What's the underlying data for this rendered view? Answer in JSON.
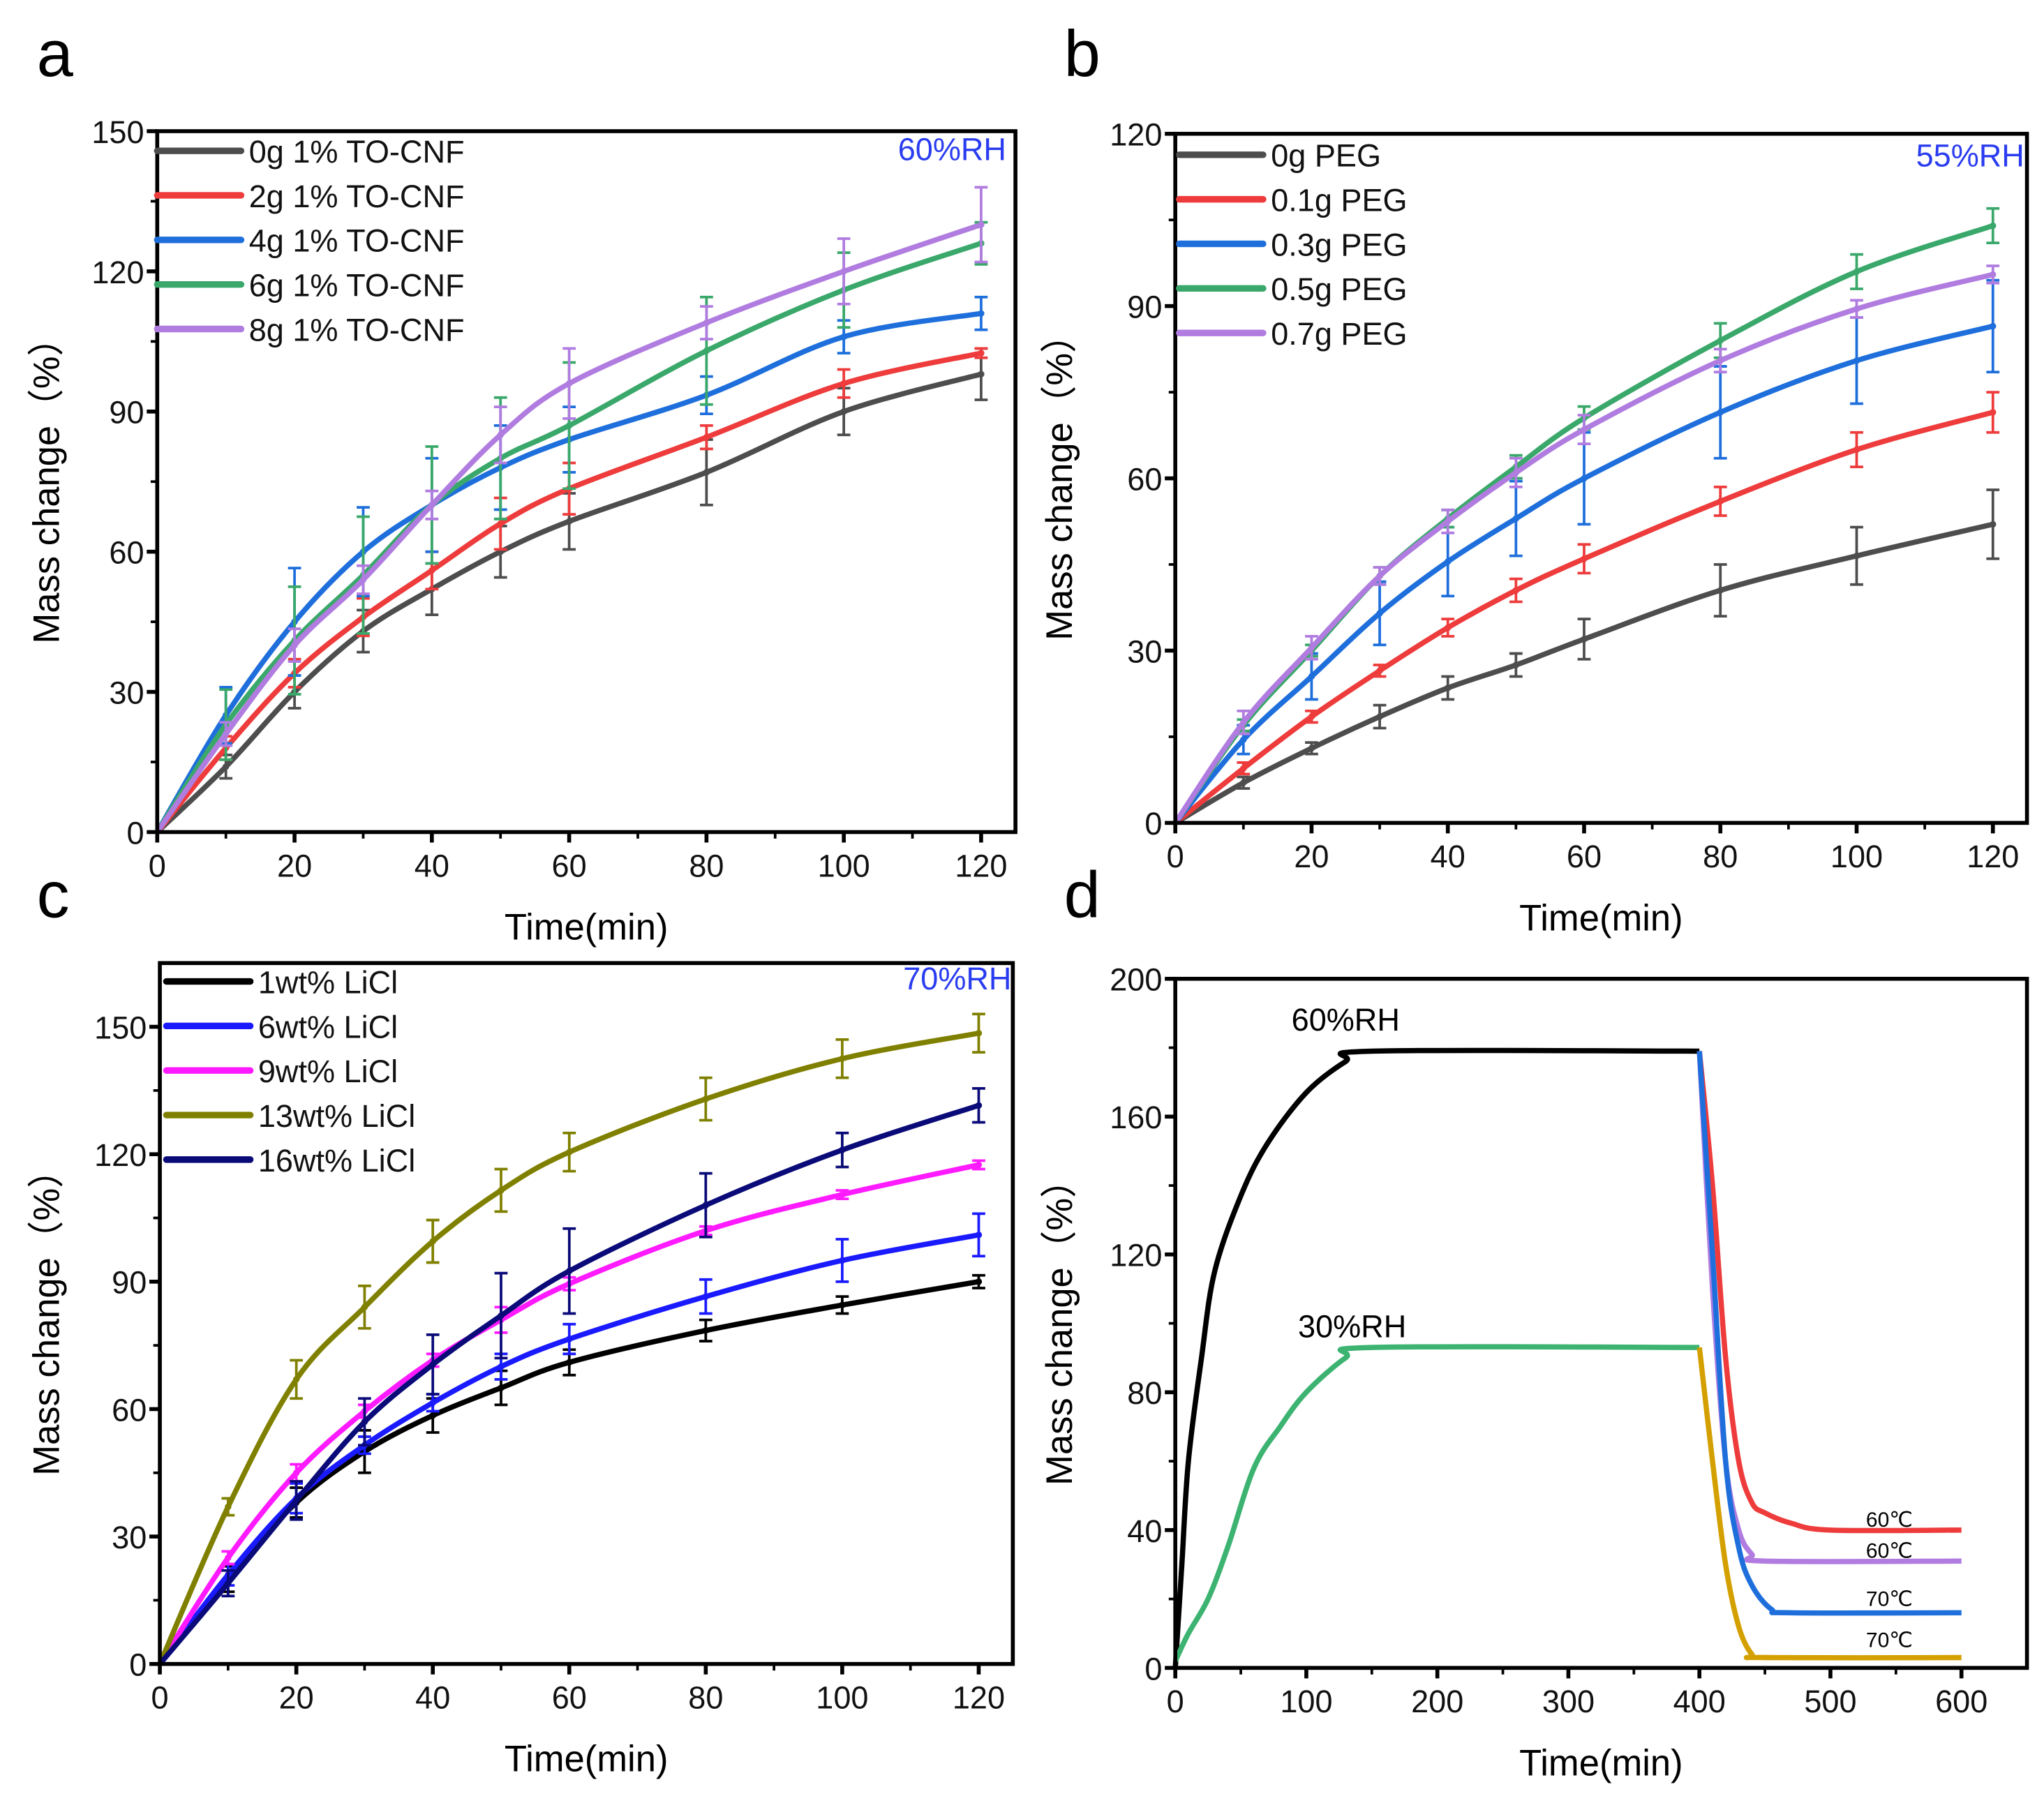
{
  "panels": [
    "a",
    "b",
    "c",
    "d"
  ],
  "chart_data": [
    {
      "type": "line",
      "panel": "a",
      "condition": "60%RH",
      "xlabel": "Time(min)",
      "ylabel": "Mass change（%）",
      "xlim": [
        0,
        125
      ],
      "ylim": [
        0,
        150
      ],
      "xticks": [
        "0",
        "20",
        "40",
        "60",
        "80",
        "100",
        "120"
      ],
      "yticks": [
        "0",
        "30",
        "60",
        "90",
        "120",
        "150"
      ],
      "legend_placement": "top-left",
      "x": [
        0,
        10,
        20,
        30,
        40,
        50,
        60,
        80,
        100,
        120
      ],
      "series": [
        {
          "name": "0g 1% TO-CNF",
          "color": "#4d4d4d",
          "values": [
            0,
            14,
            30,
            43,
            52,
            60,
            66.5,
            77,
            90,
            98
          ],
          "errors": [
            0,
            2.5,
            3.5,
            4.5,
            5.5,
            5.5,
            6,
            7,
            5,
            5.5
          ]
        },
        {
          "name": "2g 1% TO-CNF",
          "color": "#ee3b3b",
          "values": [
            0,
            18,
            34,
            46,
            56,
            66,
            73.5,
            84.5,
            96,
            102.5
          ],
          "errors": [
            0,
            2.5,
            3,
            4,
            4,
            5.5,
            5.5,
            2.5,
            3,
            1
          ]
        },
        {
          "name": "4g 1% TO-CNF",
          "color": "#1e6fdc",
          "values": [
            0,
            25,
            45,
            60,
            70,
            78,
            84,
            93.5,
            106,
            111
          ],
          "errors": [
            0,
            6,
            11.5,
            9.5,
            10,
            9,
            7,
            4,
            3.5,
            3.5
          ]
        },
        {
          "name": "6g 1% TO-CNF",
          "color": "#3aa86a",
          "values": [
            0,
            23,
            41,
            55,
            70,
            80,
            87,
            103,
            116,
            126
          ],
          "errors": [
            0,
            7.5,
            11.5,
            12.5,
            12.5,
            13,
            13.5,
            11.5,
            8,
            4.5
          ]
        },
        {
          "name": "8g 1% TO-CNF",
          "color": "#b07ce0",
          "values": [
            0,
            21,
            40,
            54,
            70,
            85,
            96,
            109,
            120,
            130
          ],
          "errors": [
            0,
            2.5,
            3.5,
            3,
            3,
            6,
            7.5,
            3.5,
            7,
            8
          ]
        }
      ]
    },
    {
      "type": "line",
      "panel": "b",
      "condition": "55%RH",
      "xlabel": "Time(min)",
      "ylabel": "Mass change（%）",
      "xlim": [
        0,
        125
      ],
      "ylim": [
        0,
        120
      ],
      "xticks": [
        "0",
        "20",
        "40",
        "60",
        "80",
        "100",
        "120"
      ],
      "yticks": [
        "0",
        "30",
        "60",
        "90",
        "120"
      ],
      "legend_placement": "top-left",
      "x": [
        0,
        10,
        20,
        30,
        40,
        50,
        60,
        80,
        100,
        120
      ],
      "series": [
        {
          "name": "0g PEG",
          "color": "#4d4d4d",
          "values": [
            0,
            7,
            13,
            18.5,
            23.5,
            27.5,
            32,
            40.5,
            46.5,
            52
          ],
          "errors": [
            0,
            1,
            1,
            2,
            2,
            2,
            3.5,
            4.5,
            5,
            6
          ]
        },
        {
          "name": "0.1g PEG",
          "color": "#ee3b3b",
          "values": [
            0,
            9.5,
            18.5,
            26.5,
            34,
            40.5,
            46,
            56,
            65,
            71.5
          ],
          "errors": [
            0,
            1,
            1,
            1,
            1.5,
            2,
            2.5,
            2.5,
            3,
            3.5
          ]
        },
        {
          "name": "0.3g PEG",
          "color": "#1e6fdc",
          "values": [
            0,
            14.5,
            25.5,
            36.5,
            45.5,
            53,
            60,
            71.5,
            80.5,
            86.5
          ],
          "errors": [
            0,
            2.5,
            4,
            5.5,
            6,
            6.5,
            8,
            8,
            7.5,
            8
          ]
        },
        {
          "name": "0.5g PEG",
          "color": "#3aa86a",
          "values": [
            0,
            17,
            30,
            43,
            53,
            62,
            70.5,
            84,
            96,
            104
          ],
          "errors": [
            0,
            1,
            1,
            1.5,
            1.5,
            2,
            2,
            3,
            3,
            3
          ]
        },
        {
          "name": "0.7g PEG",
          "color": "#b07ce0",
          "values": [
            0,
            17.5,
            30.5,
            43,
            52.5,
            61,
            68.5,
            80.5,
            89.5,
            95.5
          ],
          "errors": [
            0,
            2,
            2,
            1.5,
            2,
            2.5,
            2.5,
            2,
            1.5,
            1.5
          ]
        }
      ]
    },
    {
      "type": "line",
      "panel": "c",
      "condition": "70%RH",
      "xlabel": "Time(min)",
      "ylabel": "Mass change（%）",
      "xlim": [
        0,
        125
      ],
      "ylim": [
        0,
        165
      ],
      "xticks": [
        "0",
        "20",
        "40",
        "60",
        "80",
        "100",
        "120"
      ],
      "yticks": [
        "0",
        "30",
        "60",
        "90",
        "120",
        "150"
      ],
      "legend_placement": "top-left",
      "x": [
        0,
        10,
        20,
        30,
        40,
        50,
        60,
        80,
        100,
        120
      ],
      "series": [
        {
          "name": "1wt% LiCl",
          "color": "#000000",
          "values": [
            0,
            20,
            38,
            50,
            58.5,
            65,
            71,
            78.5,
            84.5,
            90
          ],
          "errors": [
            0,
            3,
            3.5,
            5,
            4,
            4,
            3,
            2.5,
            2,
            1.5
          ]
        },
        {
          "name": "6wt% LiCl",
          "color": "#1a1aff",
          "values": [
            0,
            21,
            39,
            51.5,
            61.5,
            70,
            76.5,
            86.5,
            95,
            101
          ],
          "errors": [
            0,
            2.5,
            3.5,
            2,
            2,
            3,
            3.5,
            4,
            5,
            5
          ]
        },
        {
          "name": "9wt% LiCl",
          "color": "#ff1aff",
          "values": [
            0,
            25,
            45,
            59.5,
            71.5,
            81,
            89.5,
            102,
            110.5,
            117.5
          ],
          "errors": [
            0,
            1.5,
            2,
            1.5,
            1.5,
            3,
            1.5,
            1,
            1,
            1
          ]
        },
        {
          "name": "13wt% LiCl",
          "color": "#808000",
          "values": [
            0,
            37,
            67,
            84,
            99.5,
            111.5,
            120.5,
            133,
            142.5,
            148.5
          ],
          "errors": [
            0,
            2,
            4.5,
            5,
            5,
            5,
            4.5,
            5,
            4.5,
            4.5
          ]
        },
        {
          "name": "16wt% LiCl",
          "color": "#0a0a78",
          "values": [
            0,
            19,
            38.5,
            57,
            70.5,
            82,
            92.5,
            108,
            121,
            131.5
          ],
          "errors": [
            0,
            3,
            4.5,
            5.5,
            7,
            10,
            10,
            7.5,
            4,
            4
          ]
        }
      ]
    },
    {
      "type": "line",
      "panel": "d",
      "xlabel": "Time(min)",
      "ylabel": "Mass change（%）",
      "xlim": [
        0,
        650
      ],
      "ylim": [
        0,
        200
      ],
      "xticks": [
        "0",
        "100",
        "200",
        "300",
        "400",
        "500",
        "600"
      ],
      "yticks": [
        "0",
        "40",
        "80",
        "120",
        "160",
        "200"
      ],
      "series": [
        {
          "name": "60%RH",
          "color": "#000000",
          "points": [
            [
              0,
              0
            ],
            [
              5,
              30
            ],
            [
              10,
              60
            ],
            [
              20,
              90
            ],
            [
              30,
              115
            ],
            [
              50,
              137
            ],
            [
              70,
              152
            ],
            [
              100,
              167
            ],
            [
              130,
              176
            ],
            [
              150,
              179
            ],
            [
              400,
              179
            ]
          ]
        },
        {
          "name": "30%RH",
          "color": "#3cb371",
          "points": [
            [
              0,
              2
            ],
            [
              10,
              10
            ],
            [
              25,
              20
            ],
            [
              40,
              35
            ],
            [
              60,
              58
            ],
            [
              80,
              70
            ],
            [
              100,
              80
            ],
            [
              130,
              90
            ],
            [
              150,
              93
            ],
            [
              400,
              93
            ]
          ]
        },
        {
          "name": "60℃",
          "color": "#ee3b3b",
          "points": [
            [
              400,
              179
            ],
            [
              410,
              140
            ],
            [
              420,
              90
            ],
            [
              430,
              60
            ],
            [
              440,
              48
            ],
            [
              450,
              45
            ],
            [
              470,
              42
            ],
            [
              500,
              40
            ],
            [
              600,
              40
            ]
          ]
        },
        {
          "name": "60℃",
          "color": "#b07ce0",
          "points": [
            [
              400,
              179
            ],
            [
              410,
              110
            ],
            [
              420,
              60
            ],
            [
              430,
              40
            ],
            [
              440,
              33
            ],
            [
              450,
              31
            ],
            [
              600,
              31
            ]
          ]
        },
        {
          "name": "70℃",
          "color": "#1e6fdc",
          "points": [
            [
              400,
              179
            ],
            [
              410,
              120
            ],
            [
              420,
              60
            ],
            [
              430,
              35
            ],
            [
              440,
              24
            ],
            [
              455,
              17
            ],
            [
              470,
              16
            ],
            [
              600,
              16
            ]
          ]
        },
        {
          "name": "70℃",
          "color": "#d4a000",
          "points": [
            [
              400,
              93
            ],
            [
              410,
              60
            ],
            [
              420,
              30
            ],
            [
              430,
              12
            ],
            [
              440,
              4
            ],
            [
              450,
              3
            ],
            [
              600,
              3
            ]
          ]
        }
      ],
      "annotations": [
        {
          "text": "60%RH",
          "x": 130,
          "y": 185,
          "small": false
        },
        {
          "text": "30%RH",
          "x": 135,
          "y": 96,
          "small": false
        },
        {
          "text": "60℃",
          "x": 545,
          "y": 41,
          "small": true
        },
        {
          "text": "60℃",
          "x": 545,
          "y": 32,
          "small": true
        },
        {
          "text": "70℃",
          "x": 545,
          "y": 18,
          "small": true
        },
        {
          "text": "70℃",
          "x": 545,
          "y": 6,
          "small": true
        }
      ]
    }
  ]
}
